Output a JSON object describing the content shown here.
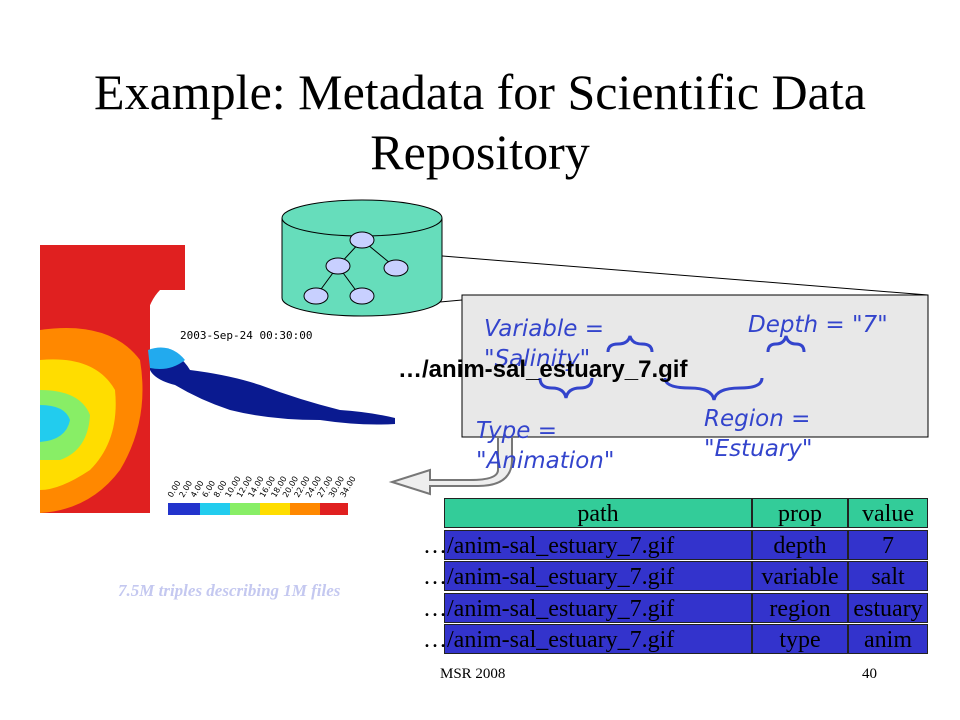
{
  "title": "Example: Metadata for Scientific Data Repository",
  "map": {
    "timestamp": "2003-Sep-24 00:30:00",
    "colorbar_labels": [
      "0.00",
      "2.00",
      "4.00",
      "6.00",
      "8.00",
      "10.00",
      "12.00",
      "14.00",
      "16.00",
      "18.00",
      "20.00",
      "22.00",
      "24.00",
      "27.00",
      "30.00",
      "34.00"
    ]
  },
  "callout": {
    "filename": "…/anim-sal_estuary_7.gif",
    "annotations": [
      "Variable = \"Salinity\"",
      "Depth = \"7\"",
      "Type = \"Animation\"",
      "Region = \"Estuary\""
    ]
  },
  "table": {
    "header": [
      "path",
      "prop",
      "value"
    ],
    "rows": [
      [
        "…/anim-sal_estuary_7.gif",
        "depth",
        "7"
      ],
      [
        "…/anim-sal_estuary_7.gif",
        "variable",
        "salt"
      ],
      [
        "…/anim-sal_estuary_7.gif",
        "region",
        "estuary"
      ],
      [
        "…/anim-sal_estuary_7.gif",
        "type",
        "anim"
      ]
    ]
  },
  "note": "7.5M triples describing 1M files",
  "footer": {
    "left": "MSR 2008",
    "page": "40"
  }
}
